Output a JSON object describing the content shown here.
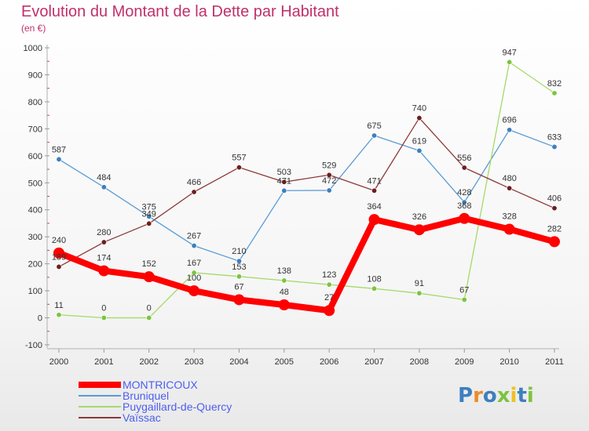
{
  "title": "Evolution du Montant de la Dette par Habitant",
  "subtitle": "(en €)",
  "logo": {
    "text": "Proxiti"
  },
  "chart_data": {
    "type": "line",
    "x": [
      "2000",
      "2001",
      "2002",
      "2003",
      "2004",
      "2005",
      "2006",
      "2007",
      "2008",
      "2009",
      "2010",
      "2011"
    ],
    "ylim": [
      -100,
      1000
    ],
    "yticks": [
      -100,
      0,
      100,
      200,
      300,
      400,
      500,
      600,
      700,
      800,
      900,
      1000
    ],
    "grid": false,
    "legend_position": "bottom-left",
    "series": [
      {
        "name": "Bruniquel",
        "color": "#5a9bd4",
        "marker": "#3d7fbf",
        "width": 1.3,
        "values": [
          587,
          484,
          375,
          267,
          210,
          471,
          472,
          675,
          619,
          428,
          696,
          633
        ],
        "labels": [
          "587",
          "484",
          "375",
          "267",
          "210",
          "471",
          "472",
          "675",
          "619",
          "428",
          "696",
          "633"
        ]
      },
      {
        "name": "Puygaillard-de-Quercy",
        "color": "#a6d96a",
        "marker": "#7cc43f",
        "width": 1.3,
        "values": [
          11,
          0,
          0,
          167,
          153,
          138,
          123,
          108,
          91,
          67,
          947,
          832
        ],
        "labels": [
          "11",
          "0",
          "0",
          "167",
          "153",
          "138",
          "123",
          "108",
          "91",
          "67",
          "947",
          "832"
        ]
      },
      {
        "name": "Vaïssac",
        "color": "#8b3a3a",
        "marker": "#6b1f1f",
        "width": 1.3,
        "values": [
          189,
          280,
          349,
          466,
          557,
          503,
          529,
          471,
          740,
          556,
          480,
          406
        ],
        "labels": [
          "189",
          "280",
          "349",
          "466",
          "557",
          "503",
          "529",
          "471",
          "740",
          "556",
          "480",
          "406"
        ]
      },
      {
        "name": "MONTRICOUX",
        "color": "#ff0000",
        "marker": "#ff0000",
        "width": 8,
        "values": [
          240,
          174,
          152,
          100,
          67,
          48,
          27,
          364,
          326,
          368,
          328,
          282
        ],
        "labels": [
          "240",
          "174",
          "152",
          "100",
          "67",
          "48",
          "27",
          "364",
          "326",
          "368",
          "328",
          "282"
        ]
      }
    ]
  },
  "legend": [
    {
      "name": "MONTRICOUX",
      "color": "#ff0000",
      "thick": true
    },
    {
      "name": "Bruniquel",
      "color": "#5a9bd4",
      "thick": false
    },
    {
      "name": "Puygaillard-de-Quercy",
      "color": "#a6d96a",
      "thick": false
    },
    {
      "name": "Vaïssac",
      "color": "#8b3a3a",
      "thick": false
    }
  ]
}
